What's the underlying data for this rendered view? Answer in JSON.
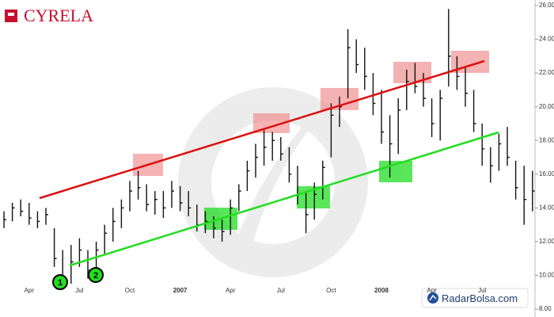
{
  "chart_data": {
    "type": "ohlc",
    "title": "CYRELA",
    "source": "RadarBolsa.com",
    "annotations": [
      "1",
      "2"
    ],
    "color": "#111111",
    "categories": [
      null,
      null,
      null,
      "Apr",
      null,
      null,
      null,
      null,
      null,
      "Jul",
      null,
      null,
      null,
      null,
      null,
      "Oct",
      null,
      null,
      null,
      null,
      null,
      "2007",
      null,
      null,
      null,
      null,
      null,
      "Apr",
      null,
      null,
      null,
      null,
      null,
      "Jul",
      null,
      null,
      null,
      null,
      null,
      "Oct",
      null,
      null,
      null,
      null,
      null,
      "2008",
      null,
      null,
      null,
      null,
      null,
      "Apr",
      null,
      null,
      null,
      null,
      null,
      "Jul",
      null,
      null,
      null,
      null,
      null,
      null
    ],
    "high": [
      13.8,
      14.3,
      14.5,
      14.3,
      13.8,
      14,
      12.8,
      11.5,
      11.8,
      12.2,
      11.5,
      12,
      13,
      14,
      14.5,
      15.6,
      16.2,
      15.4,
      15,
      15,
      15.6,
      15.3,
      15,
      14.2,
      13.8,
      13.5,
      13.3,
      14.5,
      15.4,
      16.8,
      17.8,
      18.6,
      18.5,
      18.2,
      17.6,
      16.5,
      15,
      15.5,
      16.8,
      20.2,
      20.6,
      24.6,
      24,
      23.5,
      22,
      21,
      19.5,
      20.5,
      22.2,
      22.6,
      22,
      20.5,
      21,
      25.8,
      23,
      22.4,
      21,
      19,
      17.6,
      18.4,
      18.8,
      16.8,
      16.5,
      16.2
    ],
    "low": [
      12.8,
      13.2,
      13.5,
      13,
      12.8,
      13,
      10.5,
      9.2,
      9.5,
      10.5,
      9.8,
      10.3,
      11.2,
      12,
      12.8,
      13.8,
      14.5,
      13.8,
      13.6,
      13.4,
      14,
      13.8,
      13.5,
      12.6,
      12.5,
      12.2,
      12,
      12.4,
      13.8,
      15,
      15.8,
      16.5,
      16.8,
      16.8,
      15.5,
      14.2,
      12.5,
      13.3,
      14.5,
      17,
      18.8,
      20.5,
      22,
      21,
      19.5,
      17.8,
      15.8,
      17.2,
      19.8,
      20.8,
      20,
      18.2,
      18,
      21.2,
      21,
      20,
      18.5,
      16.5,
      15.5,
      16.2,
      16.5,
      14.5,
      13,
      13.8
    ],
    "close": [
      13.3,
      14,
      13.8,
      13.4,
      13.2,
      13.6,
      11,
      9.8,
      10.8,
      11.5,
      10.3,
      11.5,
      12.5,
      13.2,
      14,
      15,
      15.2,
      14.2,
      14.5,
      14,
      15,
      14.3,
      14,
      13,
      13.2,
      12.8,
      12.6,
      14,
      15,
      16.2,
      17,
      17.6,
      18,
      17.2,
      16,
      14.8,
      13.6,
      14.8,
      16.4,
      19.5,
      20,
      23.5,
      22.5,
      21.8,
      20.2,
      18.5,
      17.8,
      19.8,
      21.5,
      21.2,
      20.5,
      19,
      20.5,
      23,
      21.8,
      20.8,
      19,
      17.5,
      16.5,
      17.8,
      17,
      15.2,
      14.5,
      15
    ],
    "ylim": [
      7.53,
      26.33
    ],
    "yticks": [
      {
        "value": 8,
        "label": "8.00"
      },
      {
        "value": 10,
        "label": "10.00"
      },
      {
        "value": 12,
        "label": "12.00"
      },
      {
        "value": 14,
        "label": "14.00"
      },
      {
        "value": 16,
        "label": "16.00"
      },
      {
        "value": 18,
        "label": "18.00"
      },
      {
        "value": 20,
        "label": "20.00"
      },
      {
        "value": 22,
        "label": "22.00"
      },
      {
        "value": 24,
        "label": "24.00"
      },
      {
        "value": 26,
        "label": "26.00"
      }
    ]
  }
}
